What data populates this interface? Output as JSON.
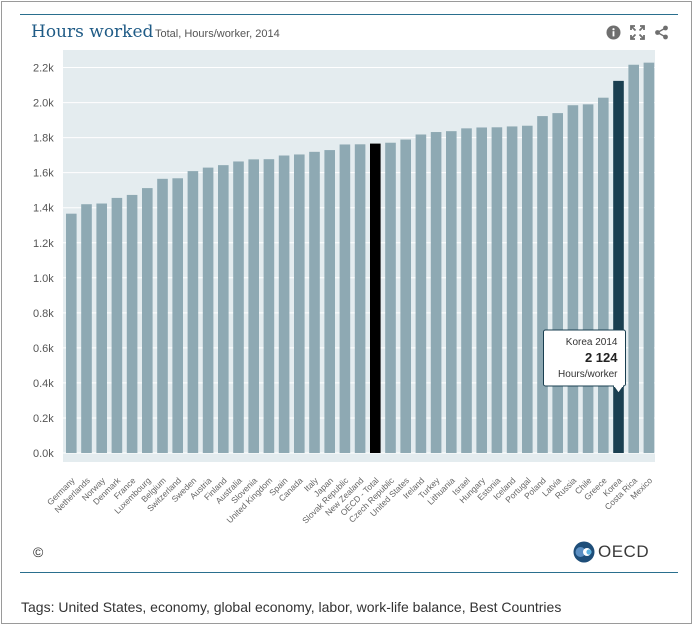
{
  "header": {
    "title": "Hours worked",
    "subtitle": "Total, Hours/worker, 2014",
    "tools": [
      {
        "name": "info-icon"
      },
      {
        "name": "expand-icon"
      },
      {
        "name": "share-icon"
      }
    ]
  },
  "colors": {
    "bar": "#8ea9b3",
    "highlight": "#1a3f50",
    "oecd_total": "#000000",
    "plot_bg": "#e4ecef",
    "title": "#1f5b86"
  },
  "chart_data": {
    "type": "bar",
    "categories": [
      "Germany",
      "Netherlands",
      "Norway",
      "Denmark",
      "France",
      "Luxembourg",
      "Belgium",
      "Switzerland",
      "Sweden",
      "Austria",
      "Finland",
      "Australia",
      "Slovenia",
      "United Kingdom",
      "Spain",
      "Canada",
      "Italy",
      "Japan",
      "Slovak Republic",
      "New Zealand",
      "OECD - Total",
      "Czech Republic",
      "United States",
      "Ireland",
      "Turkey",
      "Lithuania",
      "Israel",
      "Hungary",
      "Estonia",
      "Iceland",
      "Portugal",
      "Poland",
      "Latvia",
      "Russia",
      "Chile",
      "Greece",
      "Korea",
      "Costa Rica",
      "Mexico"
    ],
    "values": [
      1366,
      1420,
      1424,
      1456,
      1473,
      1512,
      1565,
      1568,
      1609,
      1629,
      1643,
      1664,
      1676,
      1677,
      1698,
      1704,
      1719,
      1729,
      1761,
      1762,
      1766,
      1771,
      1789,
      1818,
      1832,
      1837,
      1853,
      1858,
      1859,
      1864,
      1868,
      1923,
      1940,
      1985,
      1990,
      2028,
      2124,
      2216,
      2228
    ],
    "series": [
      {
        "values": [
          1366,
          1420,
          1424,
          1456,
          1473,
          1512,
          1565,
          1568,
          1609,
          1629,
          1643,
          1664,
          1676,
          1677,
          1698,
          1704,
          1719,
          1729,
          1761,
          1762,
          1766,
          1771,
          1789,
          1818,
          1832,
          1837,
          1853,
          1858,
          1859,
          1864,
          1868,
          1923,
          1940,
          1985,
          1990,
          2028,
          2124,
          2216,
          2228
        ]
      }
    ],
    "highlight": "Korea",
    "reference": "OECD - Total",
    "y_ticks": [
      "0.0k",
      "0.2k",
      "0.4k",
      "0.6k",
      "0.8k",
      "1.0k",
      "1.2k",
      "1.4k",
      "1.6k",
      "1.8k",
      "2.0k",
      "2.2k"
    ],
    "ylim": [
      0,
      2300
    ],
    "grid": true,
    "tooltip": {
      "line1": "Korea 2014",
      "value": "2 124",
      "unit": "Hours/worker"
    }
  },
  "footer": {
    "copyright": "©",
    "logo": "OECD",
    "tags": "Tags: United States, economy, global economy, labor, work-life balance, Best Countries"
  }
}
